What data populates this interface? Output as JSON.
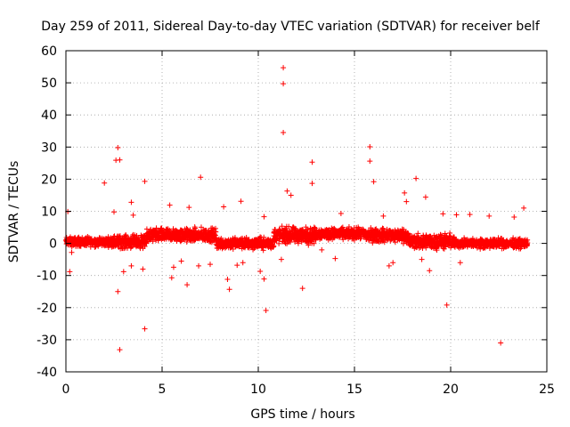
{
  "chart_data": {
    "type": "scatter",
    "title": "Day 259 of 2011, Sidereal Day-to-day VTEC variation (SDTVAR) for receiver belf",
    "xlabel": "GPS time / hours",
    "ylabel": "SDTVAR / TECUs",
    "xlim": [
      0,
      25
    ],
    "ylim": [
      -40,
      60
    ],
    "xticks": [
      0,
      5,
      10,
      15,
      20,
      25
    ],
    "yticks": [
      -40,
      -30,
      -20,
      -10,
      0,
      10,
      20,
      30,
      40,
      50,
      60
    ],
    "grid": true,
    "marker": "+",
    "color": "#ff0000",
    "series": [
      {
        "name": "SDTVAR",
        "dense_band": [
          {
            "x": [
              0.0,
              2.4
            ],
            "center": 0.5,
            "spread": 2.0
          },
          {
            "x": [
              2.4,
              4.2
            ],
            "center": 0.5,
            "spread": 2.8
          },
          {
            "x": [
              4.2,
              7.8
            ],
            "center": 2.5,
            "spread": 3.0
          },
          {
            "x": [
              7.8,
              10.8
            ],
            "center": 0.0,
            "spread": 2.5
          },
          {
            "x": [
              10.8,
              13.0
            ],
            "center": 2.5,
            "spread": 3.5
          },
          {
            "x": [
              13.0,
              15.6
            ],
            "center": 3.0,
            "spread": 2.5
          },
          {
            "x": [
              15.6,
              17.8
            ],
            "center": 2.5,
            "spread": 3.0
          },
          {
            "x": [
              17.8,
              20.2
            ],
            "center": 0.5,
            "spread": 3.2
          },
          {
            "x": [
              20.2,
              24.0
            ],
            "center": 0.0,
            "spread": 2.0
          }
        ],
        "points": [
          [
            11.3,
            54.7
          ],
          [
            11.3,
            49.7
          ],
          [
            11.3,
            34.5
          ],
          [
            2.7,
            29.8
          ],
          [
            2.6,
            25.9
          ],
          [
            2.8,
            26.0
          ],
          [
            15.8,
            30.1
          ],
          [
            15.8,
            25.6
          ],
          [
            12.8,
            25.3
          ],
          [
            16.0,
            19.2
          ],
          [
            18.2,
            20.2
          ],
          [
            2.0,
            18.8
          ],
          [
            4.1,
            19.3
          ],
          [
            7.0,
            20.6
          ],
          [
            12.8,
            18.7
          ],
          [
            11.5,
            16.3
          ],
          [
            11.7,
            15.0
          ],
          [
            17.6,
            15.7
          ],
          [
            17.7,
            13.0
          ],
          [
            18.7,
            14.4
          ],
          [
            9.1,
            13.1
          ],
          [
            3.4,
            12.8
          ],
          [
            5.4,
            11.9
          ],
          [
            23.8,
            11.0
          ],
          [
            0.1,
            9.9
          ],
          [
            2.5,
            9.8
          ],
          [
            3.5,
            8.8
          ],
          [
            6.4,
            11.2
          ],
          [
            8.2,
            11.4
          ],
          [
            10.3,
            8.3
          ],
          [
            14.3,
            9.3
          ],
          [
            16.5,
            8.5
          ],
          [
            19.6,
            9.2
          ],
          [
            20.3,
            8.9
          ],
          [
            21.0,
            9.0
          ],
          [
            22.0,
            8.5
          ],
          [
            23.3,
            8.2
          ],
          [
            0.3,
            -2.8
          ],
          [
            0.2,
            -8.8
          ],
          [
            2.7,
            -15.0
          ],
          [
            3.0,
            -8.8
          ],
          [
            3.4,
            -7.0
          ],
          [
            4.0,
            -8.0
          ],
          [
            4.1,
            -26.6
          ],
          [
            2.8,
            -33.1
          ],
          [
            5.5,
            -10.7
          ],
          [
            6.3,
            -12.9
          ],
          [
            6.9,
            -7.0
          ],
          [
            7.5,
            -6.5
          ],
          [
            8.4,
            -11.2
          ],
          [
            8.5,
            -14.3
          ],
          [
            8.9,
            -6.8
          ],
          [
            10.1,
            -8.7
          ],
          [
            10.3,
            -11.1
          ],
          [
            10.4,
            -20.9
          ],
          [
            11.2,
            -5.0
          ],
          [
            12.3,
            -14.0
          ],
          [
            13.3,
            -2.0
          ],
          [
            14.0,
            -4.7
          ],
          [
            17.0,
            -6.0
          ],
          [
            18.5,
            -5.0
          ],
          [
            18.9,
            -8.5
          ],
          [
            19.8,
            -19.2
          ],
          [
            20.5,
            -6.0
          ],
          [
            22.6,
            -31.0
          ],
          [
            5.6,
            -7.4
          ],
          [
            6.0,
            -5.5
          ],
          [
            9.2,
            -6.0
          ],
          [
            16.8,
            -7.0
          ]
        ]
      }
    ]
  }
}
